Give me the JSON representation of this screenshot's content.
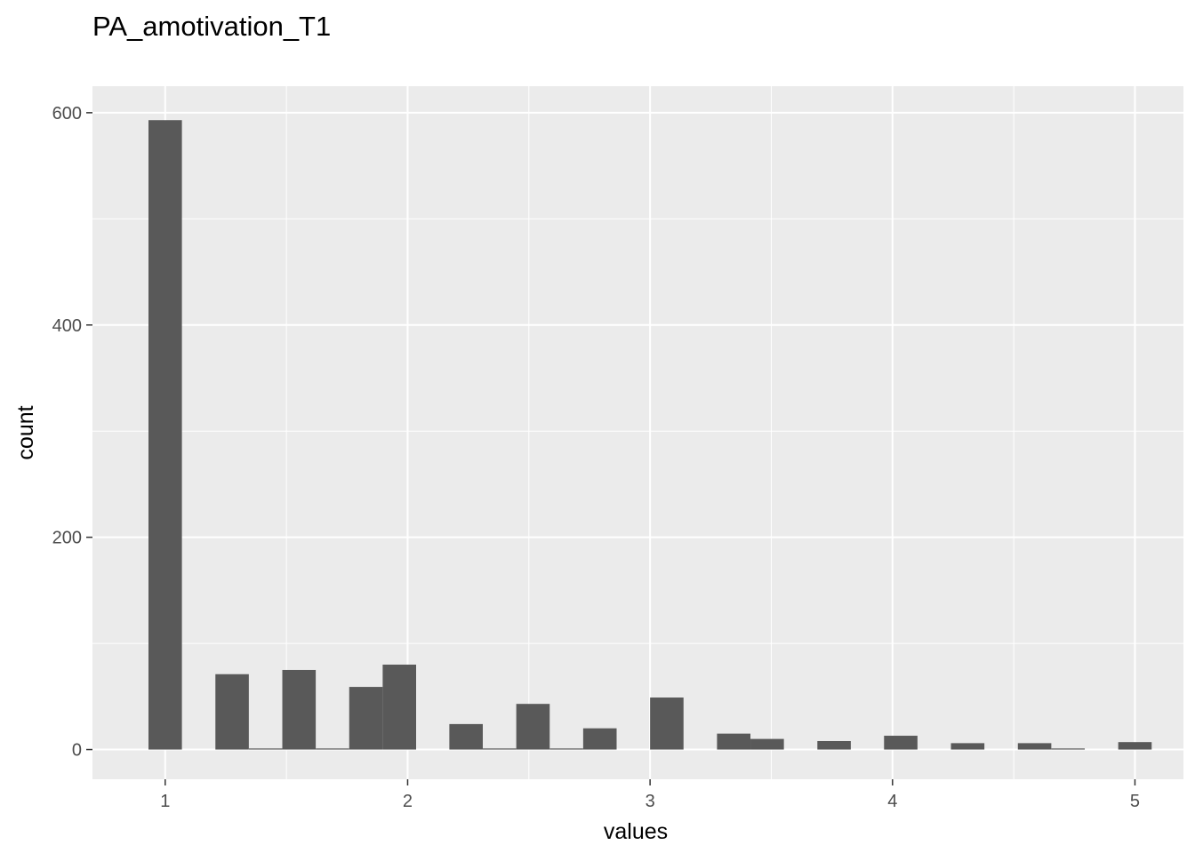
{
  "chart_data": {
    "type": "histogram",
    "title": "PA_amotivation_T1",
    "xlabel": "values",
    "ylabel": "count",
    "xlim": [
      0.7,
      5.2
    ],
    "ylim": [
      -28,
      625
    ],
    "x_ticks": [
      1,
      2,
      3,
      4,
      5
    ],
    "x_minor": [
      1.5,
      2.5,
      3.5,
      4.5
    ],
    "y_ticks": [
      0,
      200,
      400,
      600
    ],
    "y_minor": [
      100,
      300,
      500
    ],
    "grid": true,
    "legend": "none",
    "bin_width": 0.1379,
    "bins": [
      {
        "x": 1.0,
        "count": 593
      },
      {
        "x": 1.138,
        "count": 0
      },
      {
        "x": 1.276,
        "count": 71
      },
      {
        "x": 1.414,
        "count": 1
      },
      {
        "x": 1.552,
        "count": 75
      },
      {
        "x": 1.69,
        "count": 1
      },
      {
        "x": 1.828,
        "count": 59
      },
      {
        "x": 1.966,
        "count": 80
      },
      {
        "x": 2.103,
        "count": 0
      },
      {
        "x": 2.241,
        "count": 24
      },
      {
        "x": 2.379,
        "count": 1
      },
      {
        "x": 2.517,
        "count": 43
      },
      {
        "x": 2.655,
        "count": 1
      },
      {
        "x": 2.793,
        "count": 20
      },
      {
        "x": 2.931,
        "count": 0
      },
      {
        "x": 3.069,
        "count": 49
      },
      {
        "x": 3.207,
        "count": 0
      },
      {
        "x": 3.345,
        "count": 15
      },
      {
        "x": 3.483,
        "count": 10
      },
      {
        "x": 3.621,
        "count": 0
      },
      {
        "x": 3.759,
        "count": 8
      },
      {
        "x": 3.897,
        "count": 0
      },
      {
        "x": 4.034,
        "count": 13
      },
      {
        "x": 4.172,
        "count": 0
      },
      {
        "x": 4.31,
        "count": 6
      },
      {
        "x": 4.448,
        "count": 0
      },
      {
        "x": 4.586,
        "count": 6
      },
      {
        "x": 4.724,
        "count": 1
      },
      {
        "x": 4.862,
        "count": 0
      },
      {
        "x": 5.0,
        "count": 7
      }
    ],
    "colors": {
      "panel": "#ebebeb",
      "grid": "#ffffff",
      "bar": "#595959",
      "tick": "#333333"
    }
  }
}
